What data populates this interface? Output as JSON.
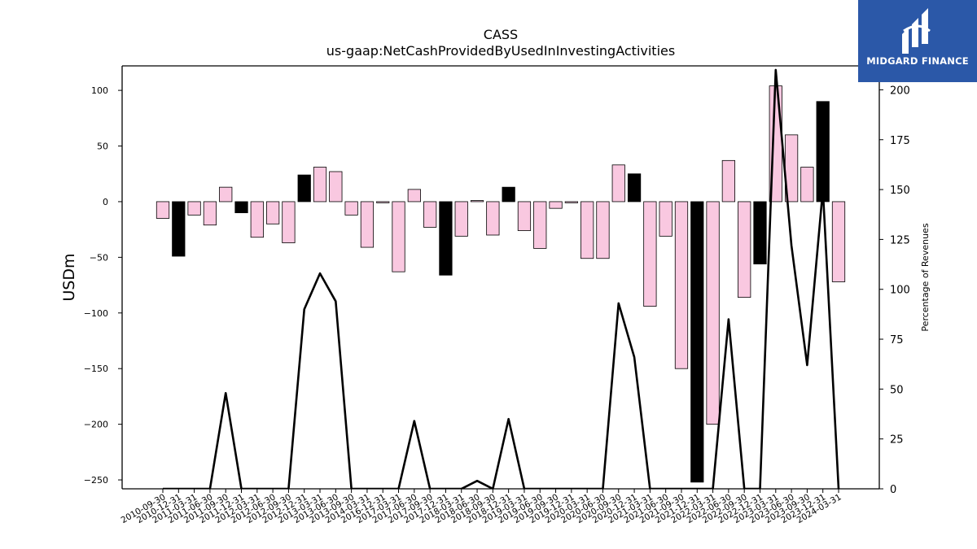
{
  "chart_data": {
    "type": "bar",
    "title": "CASS",
    "subtitle": "us-gaap:NetCashProvidedByUsedInInvestingActivities",
    "ylabel_left": "USDm",
    "ylabel_right": "Percentage of Revenues",
    "ylim_left": [
      -258,
      122
    ],
    "ylim_right": [
      0,
      212
    ],
    "yticks_left": [
      100,
      50,
      0,
      -50,
      -100,
      -150,
      -200,
      -250
    ],
    "yticks_right": [
      200,
      175,
      150,
      125,
      100,
      75,
      50,
      25,
      0
    ],
    "categories": [
      "2010-09-30",
      "2010-12-31",
      "2011-03-31",
      "2011-06-30",
      "2011-09-30",
      "2011-12-31",
      "2012-03-31",
      "2012-06-30",
      "2012-09-30",
      "2012-12-31",
      "2013-03-31",
      "2013-06-30",
      "2013-09-30",
      "2014-03-31",
      "2016-12-31",
      "2017-03-31",
      "2017-06-30",
      "2017-09-30",
      "2017-12-31",
      "2018-03-31",
      "2018-06-30",
      "2018-09-30",
      "2018-12-31",
      "2019-03-31",
      "2019-06-30",
      "2019-09-30",
      "2019-12-31",
      "2020-03-31",
      "2020-06-30",
      "2020-09-30",
      "2020-12-31",
      "2021-03-31",
      "2021-06-30",
      "2021-09-30",
      "2021-12-31",
      "2022-03-31",
      "2022-06-30",
      "2022-09-30",
      "2022-12-31",
      "2023-03-31",
      "2023-06-30",
      "2023-09-30",
      "2023-12-31",
      "2024-03-31"
    ],
    "bar_values": [
      -15,
      -49,
      -12,
      -21,
      13,
      -10,
      -32,
      -20,
      -37,
      24,
      31,
      27,
      -12,
      -41,
      -1,
      -63,
      11,
      -23,
      -66,
      -31,
      1,
      -30,
      13,
      -26,
      -42,
      -6,
      -1,
      -51,
      -51,
      33,
      25,
      -94,
      -31,
      -150,
      -252,
      -200,
      37,
      -86,
      -56,
      104,
      60,
      31,
      90,
      -72
    ],
    "bar_highlight": [
      false,
      true,
      false,
      false,
      false,
      true,
      false,
      false,
      false,
      true,
      false,
      false,
      false,
      false,
      false,
      false,
      false,
      false,
      true,
      false,
      false,
      false,
      true,
      false,
      false,
      false,
      false,
      false,
      false,
      false,
      true,
      false,
      false,
      false,
      true,
      false,
      false,
      false,
      true,
      false,
      false,
      false,
      true,
      false
    ],
    "line_series": {
      "name": "Percentage of Revenues",
      "values": [
        0,
        0,
        0,
        0,
        48,
        0,
        0,
        0,
        0,
        90,
        108,
        94,
        0,
        0,
        0,
        0,
        34,
        0,
        0,
        0,
        4,
        0,
        35,
        0,
        0,
        0,
        0,
        0,
        0,
        93,
        66,
        0,
        0,
        0,
        0,
        0,
        85,
        0,
        0,
        210,
        122,
        62,
        150,
        0
      ]
    },
    "colors": {
      "bar_normal": "#f9c8e0",
      "bar_highlight": "#000000",
      "bar_edge": "#000000",
      "line": "#000000"
    },
    "grid": false,
    "legend": "none"
  },
  "logo": {
    "text": "MIDGARD FINANCE",
    "icon": "midgard-logo-icon",
    "background": "#2b58a8"
  }
}
